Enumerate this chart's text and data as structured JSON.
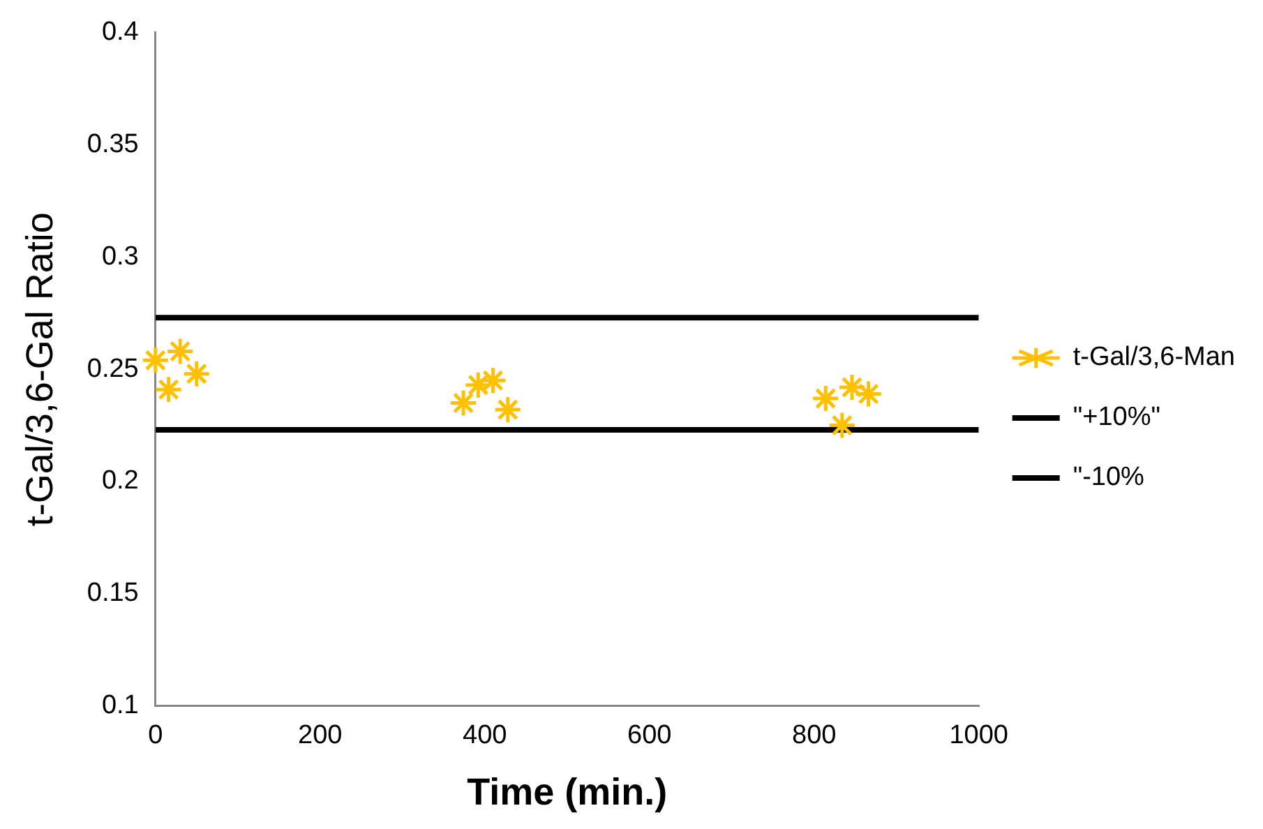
{
  "chart_data": {
    "type": "scatter",
    "xlabel": "Time (min.)",
    "ylabel": "t-Gal/3,6-Gal Ratio",
    "xlim": [
      0,
      1000
    ],
    "xticks": [
      0,
      200,
      400,
      600,
      800,
      1000
    ],
    "ylim": [
      0.1,
      0.4
    ],
    "yticks": [
      0.1,
      0.15,
      0.2,
      0.25,
      0.3,
      0.35,
      0.4
    ],
    "grid": false,
    "legend": "right",
    "series": [
      {
        "name": "t-Gal/3,6-Man",
        "marker": "cross",
        "color": "#ffc000",
        "x": [
          0,
          16,
          30,
          50,
          374,
          392,
          410,
          428,
          814,
          834,
          846,
          866
        ],
        "values": [
          0.254,
          0.241,
          0.258,
          0.248,
          0.235,
          0.243,
          0.245,
          0.232,
          0.237,
          0.225,
          0.242,
          0.239
        ]
      },
      {
        "name": "\"+10%\"",
        "type": "line",
        "marker": "none",
        "color": "#000000",
        "x": [
          0,
          1000
        ],
        "values": [
          0.273,
          0.273
        ]
      },
      {
        "name": "\"-10%",
        "type": "line",
        "marker": "none",
        "color": "#000000",
        "x": [
          0,
          1000
        ],
        "values": [
          0.223,
          0.223
        ]
      }
    ]
  }
}
